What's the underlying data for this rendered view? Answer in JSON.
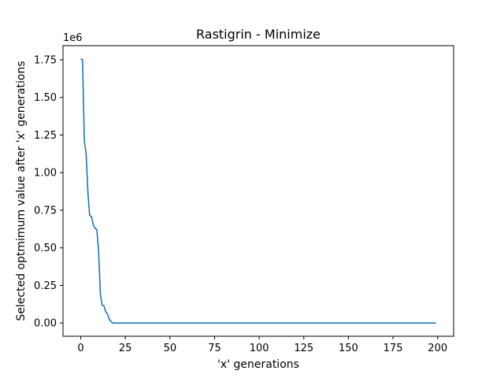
{
  "chart_data": {
    "type": "line",
    "title": "Rastigrin - Minimize",
    "xlabel": "'x' generations",
    "ylabel": "Selected optmimum value after 'x' generations",
    "offset_label": "1e6",
    "xlim": [
      -9.95,
      208.95
    ],
    "ylim": [
      -0.0878,
      1.8438
    ],
    "xticks": [
      0,
      25,
      50,
      75,
      100,
      125,
      150,
      175,
      200
    ],
    "xtick_labels": [
      "0",
      "25",
      "50",
      "75",
      "100",
      "125",
      "150",
      "175",
      "200"
    ],
    "yticks": [
      0.0,
      0.25,
      0.5,
      0.75,
      1.0,
      1.25,
      1.5,
      1.75
    ],
    "ytick_labels": [
      "0.00",
      "0.25",
      "0.50",
      "0.75",
      "1.00",
      "1.25",
      "1.50",
      "1.75"
    ],
    "grid": false,
    "line_color": "#1f77b4",
    "series": [
      {
        "x": [
          0,
          1,
          2,
          3,
          4,
          5,
          6,
          7,
          8,
          9,
          10,
          11,
          12,
          13,
          14,
          15,
          16,
          17,
          18,
          19,
          20,
          199
        ],
        "y": [
          1.755,
          1.752,
          1.21,
          1.13,
          0.87,
          0.715,
          0.708,
          0.655,
          0.63,
          0.62,
          0.48,
          0.19,
          0.118,
          0.115,
          0.075,
          0.06,
          0.025,
          0.01,
          0.0,
          0.0,
          0.0,
          0.0
        ]
      }
    ]
  }
}
